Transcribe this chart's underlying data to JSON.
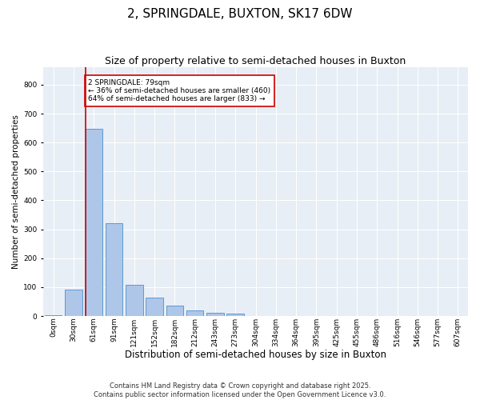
{
  "title": "2, SPRINGDALE, BUXTON, SK17 6DW",
  "subtitle": "Size of property relative to semi-detached houses in Buxton",
  "xlabel": "Distribution of semi-detached houses by size in Buxton",
  "ylabel": "Number of semi-detached properties",
  "categories": [
    "0sqm",
    "30sqm",
    "61sqm",
    "91sqm",
    "121sqm",
    "152sqm",
    "182sqm",
    "212sqm",
    "243sqm",
    "273sqm",
    "304sqm",
    "334sqm",
    "364sqm",
    "395sqm",
    "425sqm",
    "455sqm",
    "486sqm",
    "516sqm",
    "546sqm",
    "577sqm",
    "607sqm"
  ],
  "values": [
    3,
    92,
    648,
    320,
    108,
    65,
    35,
    20,
    10,
    8,
    0,
    0,
    0,
    0,
    0,
    0,
    0,
    0,
    0,
    0,
    0
  ],
  "bar_color": "#aec6e8",
  "bar_edge_color": "#5b9bd5",
  "vline_color": "#cc0000",
  "annotation_title": "2 SPRINGDALE: 79sqm",
  "annotation_line1": "← 36% of semi-detached houses are smaller (460)",
  "annotation_line2": "64% of semi-detached houses are larger (833) →",
  "annotation_box_color": "#ffffff",
  "annotation_box_edge": "#cc0000",
  "ylim": [
    0,
    860
  ],
  "yticks": [
    0,
    100,
    200,
    300,
    400,
    500,
    600,
    700,
    800
  ],
  "background_color": "#e8eef5",
  "footer": "Contains HM Land Registry data © Crown copyright and database right 2025.\nContains public sector information licensed under the Open Government Licence v3.0.",
  "title_fontsize": 11,
  "subtitle_fontsize": 9,
  "xlabel_fontsize": 8.5,
  "ylabel_fontsize": 7.5,
  "footer_fontsize": 6,
  "tick_fontsize": 6.5,
  "annotation_fontsize": 6.5
}
